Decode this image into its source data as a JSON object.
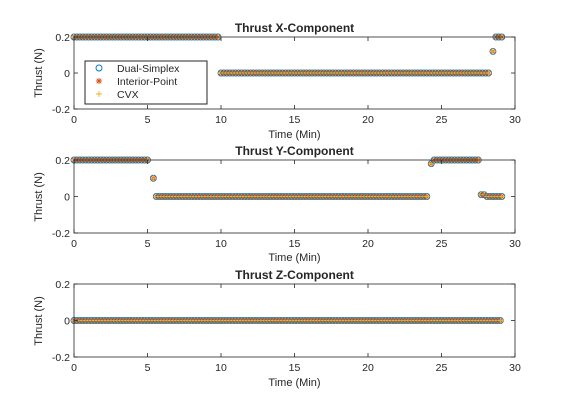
{
  "chart_data": [
    {
      "type": "scatter",
      "title": "Thrust X-Component",
      "xlabel": "Time (Min)",
      "ylabel": "Thrust (N)",
      "xlim": [
        0,
        30
      ],
      "ylim": [
        -0.2,
        0.2
      ],
      "xticks": [
        "0",
        "5",
        "10",
        "15",
        "20",
        "25",
        "30"
      ],
      "yticks": [
        "-0.2",
        "0",
        "0.2"
      ],
      "legend": "top-left",
      "series_names": [
        "Dual-Simplex",
        "Interior-Point",
        "CVX"
      ],
      "segments": [
        {
          "x_start": 0,
          "x_end": 9.9,
          "y": 0.2
        },
        {
          "x_start": 10.0,
          "x_end": 28.2,
          "y": 0.0
        },
        {
          "x_start": 28.5,
          "x_end": 28.5,
          "y": 0.12
        },
        {
          "x_start": 28.7,
          "x_end": 29.1,
          "y": 0.2
        }
      ]
    },
    {
      "type": "scatter",
      "title": "Thrust Y-Component",
      "xlabel": "Time (Min)",
      "ylabel": "Thrust (N)",
      "xlim": [
        0,
        30
      ],
      "ylim": [
        -0.2,
        0.2
      ],
      "xticks": [
        "0",
        "5",
        "10",
        "15",
        "20",
        "25",
        "30"
      ],
      "yticks": [
        "-0.2",
        "0",
        "0.2"
      ],
      "segments": [
        {
          "x_start": 0,
          "x_end": 5.1,
          "y": 0.2
        },
        {
          "x_start": 5.4,
          "x_end": 5.4,
          "y": 0.1
        },
        {
          "x_start": 5.6,
          "x_end": 24.1,
          "y": 0.0
        },
        {
          "x_start": 24.3,
          "x_end": 24.3,
          "y": 0.18
        },
        {
          "x_start": 24.5,
          "x_end": 27.5,
          "y": 0.2
        },
        {
          "x_start": 27.7,
          "x_end": 27.9,
          "y": 0.01
        },
        {
          "x_start": 28.1,
          "x_end": 29.1,
          "y": 0.0
        }
      ]
    },
    {
      "type": "scatter",
      "title": "Thrust Z-Component",
      "xlabel": "Time (Min)",
      "ylabel": "Thrust (N)",
      "xlim": [
        0,
        30
      ],
      "ylim": [
        -0.2,
        0.2
      ],
      "xticks": [
        "0",
        "5",
        "10",
        "15",
        "20",
        "25",
        "30"
      ],
      "yticks": [
        "-0.2",
        "0",
        "0.2"
      ],
      "segments": [
        {
          "x_start": 0,
          "x_end": 29.1,
          "y": 0.0
        }
      ]
    }
  ],
  "colors": {
    "dual_simplex": "#0072BD",
    "interior_point": "#D95319",
    "cvx": "#EDB120",
    "axis": "#262626"
  },
  "sample_step_min": 0.2
}
